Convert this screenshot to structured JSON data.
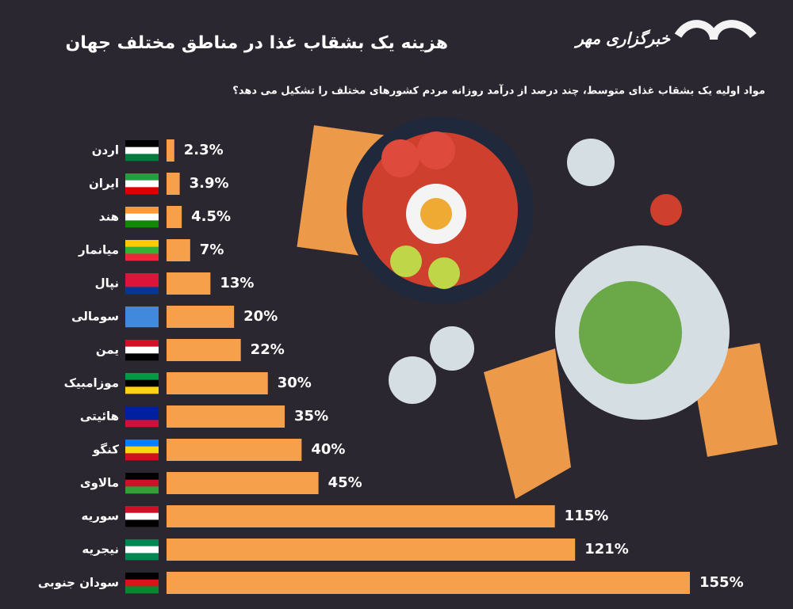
{
  "chart_data": {
    "type": "bar",
    "title": "هزینه یک بشقاب غذا در مناطق مختلف جهان",
    "subtitle": "مواد اولیه یک بشقاب غذای متوسط، چند درصد از درآمد روزانه مردم کشورهای مختلف را تشکیل می دهد؟",
    "source": "خبرگزاری مهر",
    "categories": [
      "اردن",
      "ایران",
      "هند",
      "میانمار",
      "نپال",
      "سومالی",
      "یمن",
      "موزامبیک",
      "هائیتی",
      "کنگو",
      "مالاوی",
      "سوریه",
      "نیجریه",
      "سودان جنوبی"
    ],
    "values": [
      2.3,
      3.9,
      4.5,
      7,
      13,
      20,
      22,
      30,
      35,
      40,
      45,
      115,
      121,
      155
    ],
    "value_labels": [
      "2.3%",
      "3.9%",
      "4.5%",
      "7%",
      "13%",
      "20%",
      "22%",
      "30%",
      "35%",
      "40%",
      "45%",
      "115%",
      "121%",
      "155%"
    ],
    "color": "#f7a04b"
  }
}
